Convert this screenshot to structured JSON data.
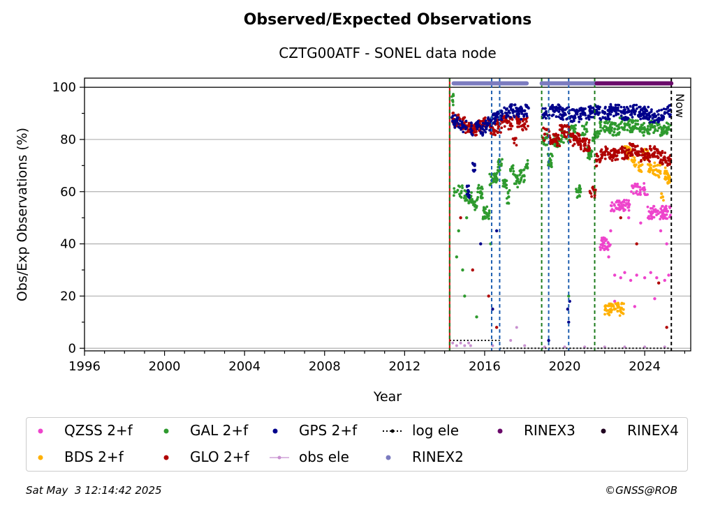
{
  "chart_data": {
    "type": "scatter",
    "title": "Observed/Expected Observations",
    "subtitle": "CZTG00ATF - SONEL data node",
    "xlabel": "Year",
    "ylabel": "Obs/Exp Observations (%)",
    "xlim": [
      1996,
      2026.3
    ],
    "ylim": [
      -1,
      103.5
    ],
    "x_ticks": [
      1996,
      2000,
      2004,
      2008,
      2012,
      2016,
      2020,
      2024
    ],
    "y_ticks": [
      0,
      20,
      40,
      60,
      80,
      100
    ],
    "grid": "horizontal",
    "legend_location": "bottom",
    "annotations": [
      {
        "text": "Now",
        "x": 2025.33
      }
    ],
    "reference_line_y": 100,
    "vertical_lines": {
      "red": [
        2014.25
      ],
      "green": [
        2014.25,
        2018.85,
        2021.5
      ],
      "blue": [
        2016.35,
        2016.75,
        2019.2,
        2020.2
      ],
      "black": [
        2025.33
      ]
    },
    "series": [
      {
        "name": "QZSS 2+f",
        "color": "#ee44cc",
        "segments": [
          {
            "x_start": 2021.75,
            "x_end": 2025.3,
            "points": [
              [
                2021.9,
                40
              ],
              [
                2022.0,
                38
              ],
              [
                2022.2,
                35
              ],
              [
                2022.5,
                28
              ],
              [
                2022.8,
                27
              ],
              [
                2023.0,
                29
              ],
              [
                2023.3,
                26
              ],
              [
                2023.6,
                28
              ],
              [
                2024.0,
                27
              ],
              [
                2024.3,
                29
              ],
              [
                2024.6,
                27
              ],
              [
                2025.0,
                26
              ],
              [
                2025.2,
                28
              ],
              [
                2022.3,
                45
              ],
              [
                2022.7,
                55
              ],
              [
                2023.2,
                50
              ],
              [
                2023.8,
                48
              ],
              [
                2024.4,
                52
              ],
              [
                2024.8,
                45
              ],
              [
                2022.5,
                18
              ],
              [
                2023.5,
                16
              ],
              [
                2024.5,
                19
              ],
              [
                2023.9,
                61
              ],
              [
                2025.1,
                40
              ]
            ]
          }
        ]
      },
      {
        "name": "BDS 2+f",
        "color": "#ffb000",
        "segments": [
          {
            "x_start": 2022.0,
            "x_end": 2025.3,
            "points": [
              [
                2023.5,
                72
              ],
              [
                2023.8,
                70
              ],
              [
                2024.0,
                74
              ],
              [
                2024.3,
                69
              ],
              [
                2024.7,
                68
              ],
              [
                2025.0,
                67
              ],
              [
                2025.2,
                65
              ],
              [
                2023.2,
                75
              ],
              [
                2022.8,
                15
              ],
              [
                2024.9,
                58
              ]
            ]
          }
        ]
      },
      {
        "name": "GAL 2+f",
        "color": "#2e9a2e",
        "segments": [
          {
            "x_start": 2014.35,
            "x_end": 2018.2,
            "points": [
              [
                2014.4,
                95
              ],
              [
                2014.5,
                60
              ],
              [
                2014.7,
                45
              ],
              [
                2014.9,
                30
              ],
              [
                2015.1,
                50
              ],
              [
                2015.3,
                58
              ],
              [
                2015.5,
                55
              ],
              [
                2015.8,
                60
              ],
              [
                2016.0,
                52
              ],
              [
                2016.3,
                40
              ],
              [
                2016.5,
                65
              ],
              [
                2016.8,
                70
              ],
              [
                2017.0,
                62
              ],
              [
                2017.3,
                68
              ],
              [
                2017.6,
                64
              ],
              [
                2017.9,
                66
              ],
              [
                2018.1,
                70
              ],
              [
                2015.0,
                20
              ],
              [
                2015.6,
                12
              ],
              [
                2014.6,
                35
              ],
              [
                2017.2,
                58
              ]
            ]
          },
          {
            "x_start": 2018.9,
            "x_end": 2025.3,
            "points": [
              [
                2019.0,
                80
              ],
              [
                2019.5,
                79
              ],
              [
                2020.0,
                81
              ],
              [
                2020.5,
                83
              ],
              [
                2021.0,
                84
              ],
              [
                2021.5,
                82
              ],
              [
                2022.0,
                85
              ],
              [
                2022.5,
                84
              ],
              [
                2023.0,
                86
              ],
              [
                2023.5,
                85
              ],
              [
                2024.0,
                84
              ],
              [
                2024.5,
                85
              ],
              [
                2025.0,
                83
              ],
              [
                2025.2,
                84
              ],
              [
                2019.3,
                72
              ],
              [
                2020.2,
                20
              ],
              [
                2020.6,
                60
              ],
              [
                2021.3,
                75
              ]
            ]
          }
        ]
      },
      {
        "name": "GLO 2+f",
        "color": "#b00000",
        "segments": [
          {
            "x_start": 2014.35,
            "x_end": 2018.2,
            "points": [
              [
                2014.4,
                88
              ],
              [
                2014.6,
                87
              ],
              [
                2014.9,
                86
              ],
              [
                2015.2,
                85
              ],
              [
                2015.5,
                84
              ],
              [
                2015.8,
                85
              ],
              [
                2016.1,
                86
              ],
              [
                2016.4,
                84
              ],
              [
                2016.7,
                85
              ],
              [
                2017.0,
                87
              ],
              [
                2017.3,
                86
              ],
              [
                2017.7,
                87
              ],
              [
                2018.0,
                86
              ],
              [
                2014.8,
                50
              ],
              [
                2015.4,
                30
              ],
              [
                2016.2,
                20
              ],
              [
                2016.6,
                8
              ],
              [
                2017.5,
                80
              ]
            ]
          },
          {
            "x_start": 2018.9,
            "x_end": 2025.3,
            "points": [
              [
                2019.0,
                82
              ],
              [
                2019.5,
                80
              ],
              [
                2020.0,
                83
              ],
              [
                2020.5,
                80
              ],
              [
                2021.0,
                78
              ],
              [
                2021.6,
                72
              ],
              [
                2022.0,
                75
              ],
              [
                2022.5,
                74
              ],
              [
                2023.0,
                75
              ],
              [
                2023.5,
                76
              ],
              [
                2024.0,
                74
              ],
              [
                2024.5,
                75
              ],
              [
                2025.0,
                73
              ],
              [
                2025.2,
                72
              ],
              [
                2021.5,
                60
              ],
              [
                2022.8,
                50
              ],
              [
                2023.6,
                40
              ],
              [
                2024.7,
                25
              ],
              [
                2025.1,
                8
              ]
            ]
          }
        ]
      },
      {
        "name": "GPS 2+f",
        "color": "#00008b",
        "segments": [
          {
            "x_start": 2014.35,
            "x_end": 2018.2,
            "points": [
              [
                2014.4,
                87
              ],
              [
                2014.7,
                86
              ],
              [
                2015.0,
                85
              ],
              [
                2015.3,
                84
              ],
              [
                2015.6,
                85
              ],
              [
                2015.9,
                84
              ],
              [
                2016.2,
                86
              ],
              [
                2016.5,
                88
              ],
              [
                2016.8,
                89
              ],
              [
                2017.1,
                90
              ],
              [
                2017.4,
                91
              ],
              [
                2017.7,
                90
              ],
              [
                2018.0,
                91
              ],
              [
                2015.2,
                60
              ],
              [
                2015.8,
                40
              ],
              [
                2016.4,
                15
              ],
              [
                2016.6,
                45
              ],
              [
                2015.5,
                70
              ]
            ]
          },
          {
            "x_start": 2018.9,
            "x_end": 2025.3,
            "points": [
              [
                2019.0,
                90
              ],
              [
                2019.5,
                91
              ],
              [
                2020.0,
                90
              ],
              [
                2020.5,
                89
              ],
              [
                2021.0,
                90
              ],
              [
                2021.5,
                91
              ],
              [
                2022.0,
                90
              ],
              [
                2022.5,
                91
              ],
              [
                2023.0,
                90
              ],
              [
                2023.5,
                91
              ],
              [
                2024.0,
                90
              ],
              [
                2024.5,
                89
              ],
              [
                2025.0,
                90
              ],
              [
                2025.2,
                91
              ],
              [
                2020.15,
                15
              ],
              [
                2020.2,
                10
              ],
              [
                2020.25,
                18
              ],
              [
                2019.2,
                3
              ]
            ]
          }
        ]
      }
    ],
    "obs_ele": {
      "name": "obs ele",
      "color": "#c890d0",
      "points": [
        [
          2014.4,
          2
        ],
        [
          2014.6,
          1
        ],
        [
          2014.8,
          2
        ],
        [
          2015.0,
          1
        ],
        [
          2015.2,
          2
        ],
        [
          2015.3,
          1
        ],
        [
          2016.4,
          1
        ],
        [
          2017.3,
          3
        ],
        [
          2017.6,
          8
        ],
        [
          2018.0,
          1
        ],
        [
          2019.0,
          0.5
        ],
        [
          2020.0,
          0.5
        ],
        [
          2021.0,
          0.5
        ],
        [
          2022.0,
          0.5
        ],
        [
          2023.0,
          0.5
        ],
        [
          2024.0,
          0.5
        ],
        [
          2025.0,
          0.5
        ]
      ]
    },
    "log_ele": {
      "name": "log ele",
      "color": "#000000",
      "segments": [
        [
          2014.25,
          2016.75,
          3
        ],
        [
          2016.75,
          2025.33,
          0
        ]
      ]
    },
    "rinex_bars": [
      {
        "name": "RINEX2",
        "color": "#7b7bbf",
        "y": 101.5,
        "segments": [
          [
            2014.45,
            2018.1
          ],
          [
            2018.85,
            2021.6
          ]
        ]
      },
      {
        "name": "RINEX3",
        "color": "#6a0a6a",
        "y": 101.5,
        "segments": [
          [
            2021.6,
            2025.33
          ]
        ]
      },
      {
        "name": "RINEX4",
        "color": "#200020",
        "y": 101.5,
        "segments": []
      }
    ]
  },
  "legend": [
    {
      "label": "QZSS 2+f",
      "color": "#ee44cc",
      "marker": "dot"
    },
    {
      "label": "GAL 2+f",
      "color": "#2e9a2e",
      "marker": "dot"
    },
    {
      "label": "GPS 2+f",
      "color": "#00008b",
      "marker": "dot"
    },
    {
      "label": "log ele",
      "color": "#000000",
      "marker": "dotted-line"
    },
    {
      "label": "RINEX3",
      "color": "#6a0a6a",
      "marker": "dot"
    },
    {
      "label": "RINEX4",
      "color": "#200020",
      "marker": "dot"
    },
    {
      "label": "BDS 2+f",
      "color": "#ffb000",
      "marker": "dot"
    },
    {
      "label": "GLO 2+f",
      "color": "#b00000",
      "marker": "dot"
    },
    {
      "label": "obs ele",
      "color": "#c890d0",
      "marker": "line-dot"
    },
    {
      "label": "RINEX2",
      "color": "#7b7bbf",
      "marker": "dot"
    }
  ],
  "footer": {
    "date": "Sat May  3 12:14:42 2025",
    "credit": "©GNSS@ROB"
  }
}
